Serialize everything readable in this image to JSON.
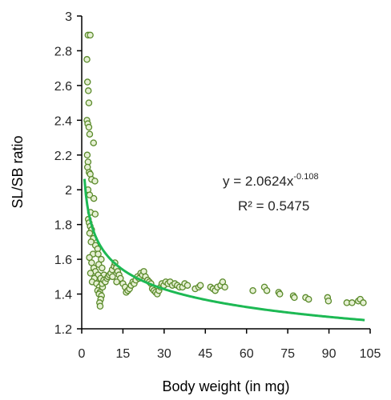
{
  "chart_data": {
    "type": "scatter",
    "xlabel": "Body weight (in mg)",
    "ylabel": "SL/SB ratio",
    "xlim": [
      0,
      105
    ],
    "ylim": [
      1.2,
      3.0
    ],
    "x_ticks": [
      0,
      15,
      30,
      45,
      60,
      75,
      90,
      105
    ],
    "y_ticks": [
      1.2,
      1.4,
      1.6,
      1.8,
      2.0,
      2.2,
      2.4,
      2.6,
      2.8,
      3.0
    ],
    "x_tick_labels": [
      "0",
      "15",
      "30",
      "45",
      "60",
      "75",
      "90",
      "105"
    ],
    "y_tick_labels": [
      "1.2",
      "1.4",
      "1.6",
      "1.8",
      "2",
      "2.2",
      "2.4",
      "2.6",
      "2.8",
      "3"
    ],
    "grid": false,
    "legend": "none",
    "colors": {
      "marker_stroke": "#5a8a2a",
      "marker_fill": "#e6f0d4",
      "trendline": "#1db954",
      "axis": "#000000"
    },
    "trendline": {
      "type": "power",
      "a": 2.0624,
      "b": -0.108,
      "x_range": [
        1,
        103
      ],
      "equation_prefix": "y = 2.0624x",
      "equation_exponent": "-0.108",
      "r2_label": "R² = 0.5475"
    },
    "series": [
      {
        "points": [
          [
            2.3,
            2.89
          ],
          [
            3.1,
            2.89
          ],
          [
            1.9,
            2.75
          ],
          [
            2.1,
            2.62
          ],
          [
            2.4,
            2.57
          ],
          [
            2.6,
            2.5
          ],
          [
            1.9,
            2.4
          ],
          [
            2.2,
            2.38
          ],
          [
            2.6,
            2.36
          ],
          [
            2.9,
            2.32
          ],
          [
            4.3,
            2.27
          ],
          [
            2.0,
            2.2
          ],
          [
            2.3,
            2.16
          ],
          [
            2.1,
            2.13
          ],
          [
            2.7,
            2.1
          ],
          [
            3.1,
            2.09
          ],
          [
            3.6,
            2.06
          ],
          [
            4.8,
            2.05
          ],
          [
            2.3,
            2.0
          ],
          [
            2.9,
            1.97
          ],
          [
            4.4,
            1.95
          ],
          [
            3.2,
            1.87
          ],
          [
            4.9,
            1.86
          ],
          [
            2.4,
            1.83
          ],
          [
            2.7,
            1.81
          ],
          [
            3.1,
            1.79
          ],
          [
            3.6,
            1.77
          ],
          [
            2.9,
            1.75
          ],
          [
            4.2,
            1.72
          ],
          [
            3.4,
            1.7
          ],
          [
            5.0,
            1.68
          ],
          [
            5.8,
            1.66
          ],
          [
            4.1,
            1.63
          ],
          [
            6.0,
            1.63
          ],
          [
            2.8,
            1.61
          ],
          [
            7.1,
            1.6
          ],
          [
            3.6,
            1.58
          ],
          [
            6.2,
            1.57
          ],
          [
            4.4,
            1.55
          ],
          [
            7.4,
            1.55
          ],
          [
            5.0,
            1.53
          ],
          [
            3.2,
            1.52
          ],
          [
            6.0,
            1.51
          ],
          [
            8.1,
            1.51
          ],
          [
            4.6,
            1.49
          ],
          [
            6.9,
            1.49
          ],
          [
            3.8,
            1.47
          ],
          [
            5.4,
            1.46
          ],
          [
            7.0,
            1.45
          ],
          [
            6.4,
            1.44
          ],
          [
            7.6,
            1.44
          ],
          [
            5.8,
            1.42
          ],
          [
            6.6,
            1.41
          ],
          [
            6.3,
            1.4
          ],
          [
            7.2,
            1.39
          ],
          [
            6.9,
            1.37
          ],
          [
            6.5,
            1.35
          ],
          [
            6.7,
            1.33
          ],
          [
            7.4,
            1.46
          ],
          [
            8.0,
            1.48
          ],
          [
            8.6,
            1.47
          ],
          [
            9.2,
            1.49
          ],
          [
            9.6,
            1.5
          ],
          [
            10.1,
            1.51
          ],
          [
            10.6,
            1.52
          ],
          [
            11.1,
            1.54
          ],
          [
            11.8,
            1.56
          ],
          [
            12.1,
            1.58
          ],
          [
            12.6,
            1.55
          ],
          [
            13.1,
            1.53
          ],
          [
            13.6,
            1.51
          ],
          [
            14.1,
            1.49
          ],
          [
            11.2,
            1.5
          ],
          [
            12.7,
            1.47
          ],
          [
            15.0,
            1.46
          ],
          [
            15.8,
            1.44
          ],
          [
            16.2,
            1.41
          ],
          [
            16.8,
            1.42
          ],
          [
            17.4,
            1.43
          ],
          [
            18.0,
            1.45
          ],
          [
            18.6,
            1.47
          ],
          [
            19.1,
            1.46
          ],
          [
            19.7,
            1.48
          ],
          [
            20.3,
            1.5
          ],
          [
            20.9,
            1.49
          ],
          [
            21.5,
            1.52
          ],
          [
            22.1,
            1.51
          ],
          [
            22.6,
            1.53
          ],
          [
            23.2,
            1.5
          ],
          [
            24.0,
            1.48
          ],
          [
            24.6,
            1.47
          ],
          [
            25.2,
            1.46
          ],
          [
            25.7,
            1.43
          ],
          [
            26.3,
            1.42
          ],
          [
            26.9,
            1.41
          ],
          [
            27.5,
            1.4
          ],
          [
            28.1,
            1.42
          ],
          [
            28.7,
            1.44
          ],
          [
            29.2,
            1.46
          ],
          [
            29.9,
            1.45
          ],
          [
            30.6,
            1.47
          ],
          [
            31.4,
            1.46
          ],
          [
            32.2,
            1.47
          ],
          [
            33.0,
            1.45
          ],
          [
            33.9,
            1.46
          ],
          [
            34.8,
            1.45
          ],
          [
            35.6,
            1.44
          ],
          [
            36.7,
            1.44
          ],
          [
            37.5,
            1.46
          ],
          [
            38.5,
            1.45
          ],
          [
            41.3,
            1.43
          ],
          [
            42.6,
            1.44
          ],
          [
            43.2,
            1.45
          ],
          [
            46.9,
            1.44
          ],
          [
            47.8,
            1.43
          ],
          [
            48.6,
            1.42
          ],
          [
            49.4,
            1.44
          ],
          [
            50.6,
            1.45
          ],
          [
            51.3,
            1.47
          ],
          [
            52.1,
            1.44
          ],
          [
            62.3,
            1.42
          ],
          [
            66.5,
            1.44
          ],
          [
            67.4,
            1.42
          ],
          [
            71.7,
            1.41
          ],
          [
            72.1,
            1.4
          ],
          [
            77.0,
            1.39
          ],
          [
            77.4,
            1.38
          ],
          [
            81.5,
            1.38
          ],
          [
            82.6,
            1.37
          ],
          [
            89.5,
            1.38
          ],
          [
            89.8,
            1.36
          ],
          [
            96.5,
            1.35
          ],
          [
            98.4,
            1.35
          ],
          [
            100.7,
            1.36
          ],
          [
            101.4,
            1.37
          ],
          [
            102.5,
            1.35
          ]
        ]
      }
    ]
  }
}
